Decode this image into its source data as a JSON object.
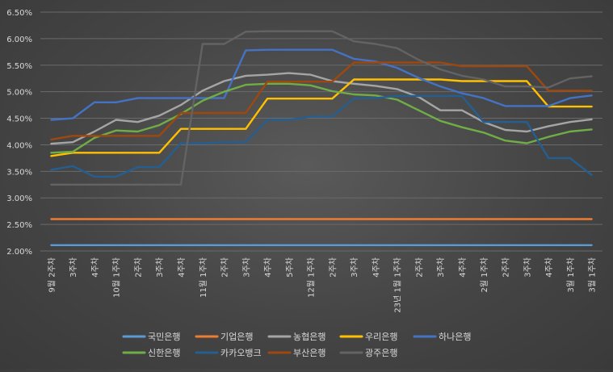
{
  "chart_data": {
    "type": "line",
    "title": "",
    "xlabel": "",
    "ylabel": "",
    "ylim": [
      0.02,
      0.065
    ],
    "y_ticks": [
      "2.00%",
      "2.50%",
      "3.00%",
      "3.50%",
      "4.00%",
      "4.50%",
      "5.00%",
      "5.50%",
      "6.00%",
      "6.50%"
    ],
    "grid": true,
    "legend_position": "bottom",
    "categories": [
      "9월 2주차",
      "3주차",
      "4주차",
      "10월 1주차",
      "2주차",
      "3주차",
      "4주차",
      "11월 1주차",
      "2주차",
      "3주차",
      "4주차",
      "5주차",
      "12월 1주차",
      "2주차",
      "3주차",
      "4주차",
      "23년 1월 1주차",
      "2주차",
      "3주차",
      "4주차",
      "2월 1주차",
      "2주차",
      "3주차",
      "4주차",
      "3월 1주차",
      "3월 1주차"
    ],
    "series": [
      {
        "name": "국민은행",
        "color": "#5b9bd5",
        "values": [
          2.11,
          2.11,
          2.11,
          2.11,
          2.11,
          2.11,
          2.11,
          2.11,
          2.11,
          2.11,
          2.11,
          2.11,
          2.11,
          2.11,
          2.11,
          2.11,
          2.11,
          2.11,
          2.11,
          2.11,
          2.11,
          2.11,
          2.11,
          2.11,
          2.11,
          2.11
        ]
      },
      {
        "name": "기업은행",
        "color": "#ed7d31",
        "values": [
          2.6,
          2.6,
          2.6,
          2.6,
          2.6,
          2.6,
          2.6,
          2.6,
          2.6,
          2.6,
          2.6,
          2.6,
          2.6,
          2.6,
          2.6,
          2.6,
          2.6,
          2.6,
          2.6,
          2.6,
          2.6,
          2.6,
          2.6,
          2.6,
          2.6,
          2.6
        ]
      },
      {
        "name": "농협은행",
        "color": "#a5a5a5",
        "values": [
          4.02,
          4.05,
          4.25,
          4.47,
          4.43,
          4.55,
          4.75,
          5.02,
          5.2,
          5.3,
          5.32,
          5.35,
          5.32,
          5.2,
          5.15,
          5.11,
          5.05,
          4.9,
          4.65,
          4.65,
          4.43,
          4.28,
          4.25,
          4.35,
          4.43,
          4.48
        ]
      },
      {
        "name": "우리은행",
        "color": "#ffc000",
        "values": [
          3.79,
          3.85,
          3.85,
          3.85,
          3.85,
          3.85,
          4.3,
          4.3,
          4.3,
          4.3,
          4.87,
          4.87,
          4.87,
          4.87,
          5.23,
          5.23,
          5.23,
          5.23,
          5.23,
          5.2,
          5.2,
          5.2,
          5.2,
          4.72,
          4.72,
          4.72
        ]
      },
      {
        "name": "하나은행",
        "color": "#4472c4",
        "values": [
          4.47,
          4.5,
          4.8,
          4.8,
          4.88,
          4.88,
          4.88,
          4.88,
          4.88,
          5.78,
          5.79,
          5.79,
          5.79,
          5.79,
          5.62,
          5.57,
          5.45,
          5.26,
          5.1,
          4.97,
          4.88,
          4.73,
          4.73,
          4.73,
          4.88,
          4.93
        ]
      },
      {
        "name": "신한은행",
        "color": "#70ad47",
        "values": [
          3.85,
          3.87,
          4.13,
          4.27,
          4.25,
          4.37,
          4.58,
          4.83,
          5.0,
          5.13,
          5.15,
          5.15,
          5.12,
          5.01,
          4.95,
          4.93,
          4.85,
          4.65,
          4.45,
          4.33,
          4.23,
          4.08,
          4.03,
          4.15,
          4.25,
          4.29
        ]
      },
      {
        "name": "카카오뱅크",
        "color": "#255e91",
        "values": [
          3.53,
          3.6,
          3.4,
          3.4,
          3.58,
          3.58,
          4.03,
          4.03,
          4.05,
          4.05,
          4.47,
          4.47,
          4.53,
          4.53,
          4.88,
          4.88,
          4.92,
          4.92,
          4.92,
          4.92,
          4.43,
          4.43,
          4.43,
          3.75,
          3.75,
          3.43
        ]
      },
      {
        "name": "부산은행",
        "color": "#9e480e",
        "values": [
          4.1,
          4.17,
          4.17,
          4.17,
          4.17,
          4.17,
          4.6,
          4.6,
          4.6,
          4.6,
          5.19,
          5.19,
          5.19,
          5.19,
          5.55,
          5.55,
          5.55,
          5.55,
          5.55,
          5.48,
          5.48,
          5.48,
          5.48,
          5.02,
          5.02,
          5.02
        ]
      },
      {
        "name": "광주은행",
        "color": "#636363",
        "values": [
          3.25,
          3.25,
          3.25,
          3.25,
          3.25,
          3.25,
          3.25,
          5.9,
          5.9,
          6.13,
          6.14,
          6.14,
          6.14,
          6.14,
          5.95,
          5.9,
          5.82,
          5.6,
          5.42,
          5.3,
          5.23,
          5.1,
          5.1,
          5.08,
          5.25,
          5.29
        ]
      }
    ]
  }
}
